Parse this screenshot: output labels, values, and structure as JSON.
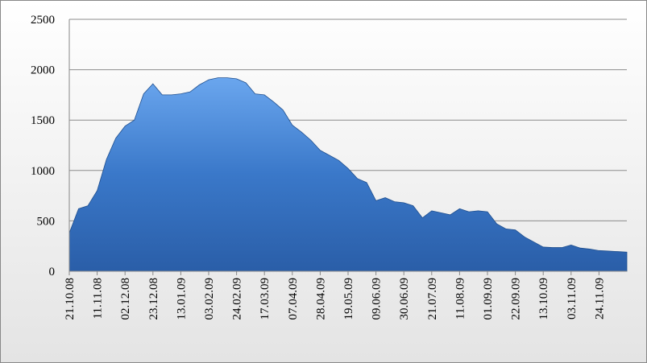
{
  "chart_data": {
    "type": "area",
    "color": "#3a78c9",
    "categories": [
      "21.10.08",
      null,
      null,
      "11.11.08",
      null,
      null,
      "02.12.08",
      null,
      null,
      "23.12.08",
      null,
      null,
      "13.01.09",
      null,
      null,
      "03.02.09",
      null,
      null,
      "24.02.09",
      null,
      null,
      "17.03.09",
      null,
      null,
      "07.04.09",
      null,
      null,
      "28.04.09",
      null,
      null,
      "19.05.09",
      null,
      null,
      "09.06.09",
      null,
      null,
      "30.06.09",
      null,
      null,
      "21.07.09",
      null,
      null,
      "11.08.09",
      null,
      null,
      "01.09.09",
      null,
      null,
      "22.09.09",
      null,
      null,
      "13.10.09",
      null,
      null,
      "03.11.09",
      null,
      null,
      "24.11.09",
      null,
      null,
      null
    ],
    "values": [
      380,
      620,
      650,
      800,
      1110,
      1320,
      1440,
      1500,
      1760,
      1860,
      1750,
      1750,
      1760,
      1780,
      1850,
      1900,
      1920,
      1920,
      1910,
      1870,
      1760,
      1750,
      1680,
      1600,
      1450,
      1380,
      1300,
      1200,
      1150,
      1100,
      1020,
      920,
      880,
      700,
      730,
      690,
      680,
      650,
      530,
      600,
      580,
      560,
      620,
      590,
      600,
      590,
      470,
      420,
      410,
      340,
      290,
      240,
      235,
      235,
      260,
      230,
      220,
      205,
      200,
      195,
      190
    ],
    "ylim": [
      0,
      2500
    ],
    "yticks": [
      0,
      500,
      1000,
      1500,
      2000,
      2500
    ],
    "grid": true
  }
}
